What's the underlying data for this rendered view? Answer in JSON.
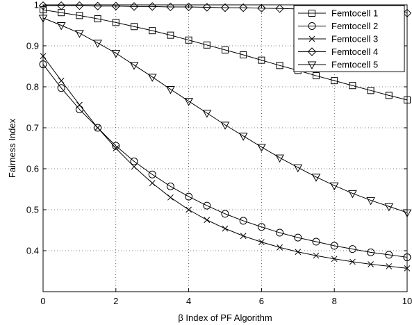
{
  "chart_data": {
    "type": "line",
    "title": "",
    "xlabel": "β Index of PF Algorithm",
    "ylabel": "Fairness Index",
    "xlim": [
      0,
      10
    ],
    "ylim": [
      0.3,
      1.0
    ],
    "xticks": [
      0,
      2,
      4,
      6,
      8,
      10
    ],
    "yticks": [
      0.4,
      0.5,
      0.6,
      0.7,
      0.8,
      0.9,
      1.0
    ],
    "xtick_labels": [
      "0",
      "2",
      "4",
      "6",
      "8",
      "10"
    ],
    "ytick_labels": [
      "0.4",
      "0.5",
      "0.6",
      "0.7",
      "0.8",
      "0.9",
      "1"
    ],
    "grid": true,
    "grid_style": "dotted",
    "legend_position": "top-right",
    "line_color": "#000000",
    "x": [
      0,
      0.5,
      1,
      1.5,
      2,
      2.5,
      3,
      3.5,
      4,
      4.5,
      5,
      5.5,
      6,
      6.5,
      7,
      7.5,
      8,
      8.5,
      9,
      9.5,
      10
    ],
    "series": [
      {
        "name": "Femtocell 1",
        "marker": "square",
        "values": [
          0.988,
          0.981,
          0.974,
          0.966,
          0.957,
          0.947,
          0.937,
          0.926,
          0.914,
          0.902,
          0.89,
          0.878,
          0.865,
          0.852,
          0.84,
          0.827,
          0.815,
          0.803,
          0.791,
          0.779,
          0.768
        ]
      },
      {
        "name": "Femtocell 2",
        "marker": "circle",
        "values": [
          0.855,
          0.797,
          0.745,
          0.7,
          0.656,
          0.618,
          0.586,
          0.557,
          0.532,
          0.51,
          0.49,
          0.473,
          0.458,
          0.444,
          0.432,
          0.422,
          0.412,
          0.404,
          0.396,
          0.39,
          0.384
        ]
      },
      {
        "name": "Femtocell 3",
        "marker": "x",
        "values": [
          0.875,
          0.815,
          0.756,
          0.7,
          0.65,
          0.605,
          0.565,
          0.53,
          0.5,
          0.475,
          0.454,
          0.436,
          0.421,
          0.408,
          0.397,
          0.388,
          0.38,
          0.373,
          0.367,
          0.362,
          0.357
        ]
      },
      {
        "name": "Femtocell 4",
        "marker": "diamond",
        "values": [
          0.998,
          0.998,
          0.998,
          0.997,
          0.997,
          0.996,
          0.996,
          0.995,
          0.995,
          0.994,
          0.993,
          0.993,
          0.992,
          0.991,
          0.99,
          0.989,
          0.988,
          0.986,
          0.985,
          0.983,
          0.98
        ]
      },
      {
        "name": "Femtocell 5",
        "marker": "triangle-down",
        "values": [
          0.968,
          0.95,
          0.931,
          0.907,
          0.882,
          0.853,
          0.824,
          0.794,
          0.765,
          0.736,
          0.707,
          0.68,
          0.653,
          0.627,
          0.603,
          0.58,
          0.559,
          0.54,
          0.523,
          0.508,
          0.493
        ]
      }
    ]
  }
}
